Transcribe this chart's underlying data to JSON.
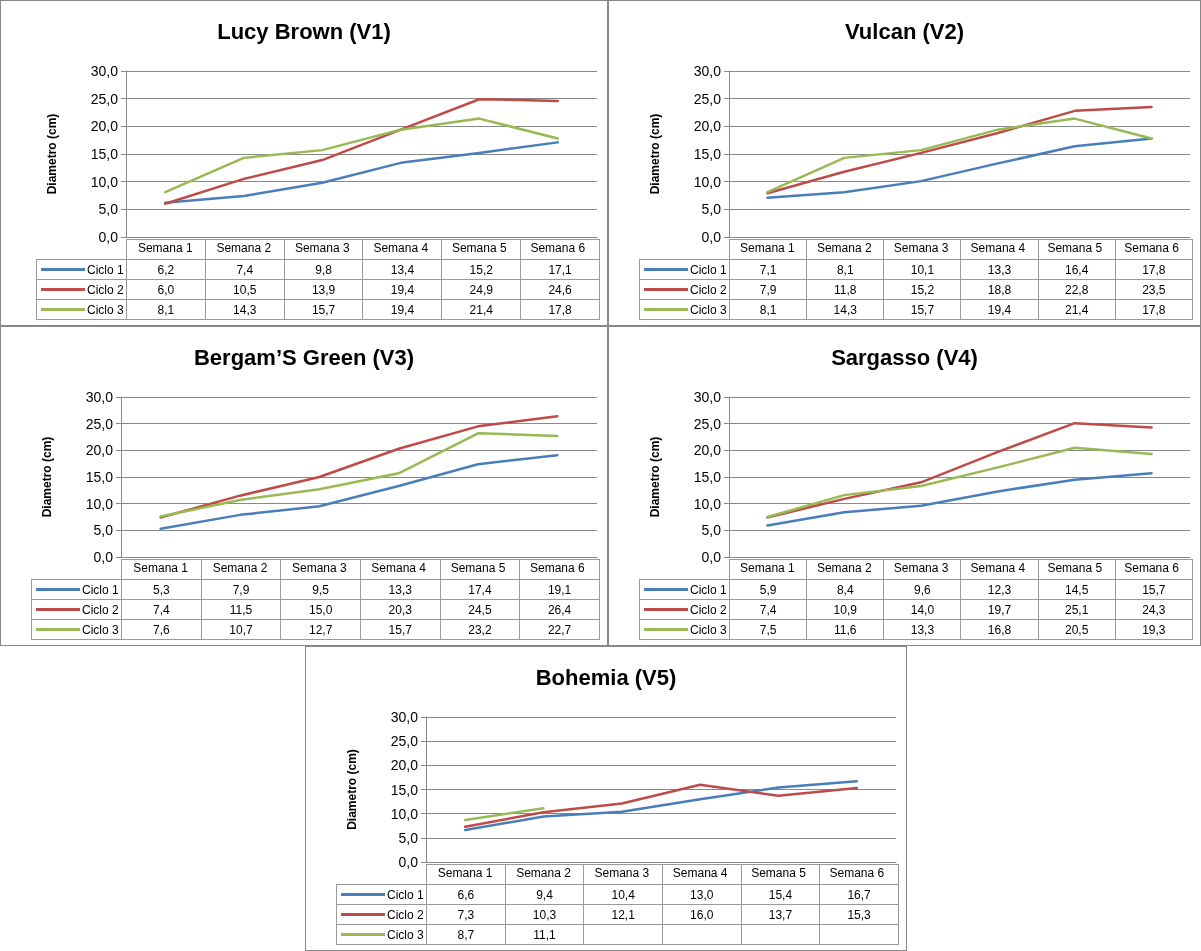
{
  "chart_data": [
    {
      "type": "line",
      "title": "Lucy Brown (V1)",
      "ylabel": "Diametro (cm)",
      "categories": [
        "Semana 1",
        "Semana 2",
        "Semana 3",
        "Semana 4",
        "Semana 5",
        "Semana 6"
      ],
      "series": [
        {
          "name": "Ciclo 1",
          "color": "#4a7ebb",
          "values": [
            6.2,
            7.4,
            9.8,
            13.4,
            15.2,
            17.1
          ],
          "value_labels": [
            "6,2",
            "7,4",
            "9,8",
            "13,4",
            "15,2",
            "17,1"
          ]
        },
        {
          "name": "Ciclo 2",
          "color": "#be4b48",
          "values": [
            6.0,
            10.5,
            13.9,
            19.4,
            24.9,
            24.6
          ],
          "value_labels": [
            "6,0",
            "10,5",
            "13,9",
            "19,4",
            "24,9",
            "24,6"
          ]
        },
        {
          "name": "Ciclo 3",
          "color": "#98b954",
          "values": [
            8.1,
            14.3,
            15.7,
            19.4,
            21.4,
            17.8
          ],
          "value_labels": [
            "8,1",
            "14,3",
            "15,7",
            "19,4",
            "21,4",
            "17,8"
          ]
        }
      ],
      "ylim": [
        0,
        30
      ],
      "yticks": [
        {
          "value": 0,
          "label": "0,0"
        },
        {
          "value": 5,
          "label": "5,0"
        },
        {
          "value": 10,
          "label": "10,0"
        },
        {
          "value": 15,
          "label": "15,0"
        },
        {
          "value": 20,
          "label": "20,0"
        },
        {
          "value": 25,
          "label": "25,0"
        },
        {
          "value": 30,
          "label": "30,0"
        }
      ],
      "grid": "y",
      "legend": "bottom",
      "marker": "none"
    },
    {
      "type": "line",
      "title": "Vulcan (V2)",
      "ylabel": "Diametro (cm)",
      "categories": [
        "Semana 1",
        "Semana 2",
        "Semana 3",
        "Semana 4",
        "Semana 5",
        "Semana 6"
      ],
      "series": [
        {
          "name": "Ciclo 1",
          "color": "#4a7ebb",
          "values": [
            7.1,
            8.1,
            10.1,
            13.3,
            16.4,
            17.8
          ],
          "value_labels": [
            "7,1",
            "8,1",
            "10,1",
            "13,3",
            "16,4",
            "17,8"
          ]
        },
        {
          "name": "Ciclo 2",
          "color": "#be4b48",
          "values": [
            7.9,
            11.8,
            15.2,
            18.8,
            22.8,
            23.5
          ],
          "value_labels": [
            "7,9",
            "11,8",
            "15,2",
            "18,8",
            "22,8",
            "23,5"
          ]
        },
        {
          "name": "Ciclo 3",
          "color": "#98b954",
          "values": [
            8.1,
            14.3,
            15.7,
            19.4,
            21.4,
            17.8
          ],
          "value_labels": [
            "8,1",
            "14,3",
            "15,7",
            "19,4",
            "21,4",
            "17,8"
          ]
        }
      ],
      "ylim": [
        0,
        30
      ],
      "yticks": [
        {
          "value": 0,
          "label": "0,0"
        },
        {
          "value": 5,
          "label": "5,0"
        },
        {
          "value": 10,
          "label": "10,0"
        },
        {
          "value": 15,
          "label": "15,0"
        },
        {
          "value": 20,
          "label": "20,0"
        },
        {
          "value": 25,
          "label": "25,0"
        },
        {
          "value": 30,
          "label": "30,0"
        }
      ],
      "grid": "y",
      "legend": "bottom",
      "marker": "none"
    },
    {
      "type": "line",
      "title": "Bergam’S Green (V3)",
      "ylabel": "Diametro (cm)",
      "categories": [
        "Semana 1",
        "Semana 2",
        "Semana 3",
        "Semana 4",
        "Semana 5",
        "Semana 6"
      ],
      "series": [
        {
          "name": "Ciclo 1",
          "color": "#4a7ebb",
          "values": [
            5.3,
            7.9,
            9.5,
            13.3,
            17.4,
            19.1
          ],
          "value_labels": [
            "5,3",
            "7,9",
            "9,5",
            "13,3",
            "17,4",
            "19,1"
          ]
        },
        {
          "name": "Ciclo 2",
          "color": "#be4b48",
          "values": [
            7.4,
            11.5,
            15.0,
            20.3,
            24.5,
            26.4
          ],
          "value_labels": [
            "7,4",
            "11,5",
            "15,0",
            "20,3",
            "24,5",
            "26,4"
          ]
        },
        {
          "name": "Ciclo 3",
          "color": "#98b954",
          "values": [
            7.6,
            10.7,
            12.7,
            15.7,
            23.2,
            22.7
          ],
          "value_labels": [
            "7,6",
            "10,7",
            "12,7",
            "15,7",
            "23,2",
            "22,7"
          ]
        }
      ],
      "ylim": [
        0,
        30
      ],
      "yticks": [
        {
          "value": 0,
          "label": "0,0"
        },
        {
          "value": 5,
          "label": "5,0"
        },
        {
          "value": 10,
          "label": "10,0"
        },
        {
          "value": 15,
          "label": "15,0"
        },
        {
          "value": 20,
          "label": "20,0"
        },
        {
          "value": 25,
          "label": "25,0"
        },
        {
          "value": 30,
          "label": "30,0"
        }
      ],
      "grid": "y",
      "legend": "bottom",
      "marker": "none"
    },
    {
      "type": "line",
      "title": "Sargasso (V4)",
      "ylabel": "Diametro (cm)",
      "categories": [
        "Semana 1",
        "Semana 2",
        "Semana 3",
        "Semana 4",
        "Semana 5",
        "Semana 6"
      ],
      "series": [
        {
          "name": "Ciclo 1",
          "color": "#4a7ebb",
          "values": [
            5.9,
            8.4,
            9.6,
            12.3,
            14.5,
            15.7
          ],
          "value_labels": [
            "5,9",
            "8,4",
            "9,6",
            "12,3",
            "14,5",
            "15,7"
          ]
        },
        {
          "name": "Ciclo 2",
          "color": "#be4b48",
          "values": [
            7.4,
            10.9,
            14.0,
            19.7,
            25.1,
            24.3
          ],
          "value_labels": [
            "7,4",
            "10,9",
            "14,0",
            "19,7",
            "25,1",
            "24,3"
          ]
        },
        {
          "name": "Ciclo 3",
          "color": "#98b954",
          "values": [
            7.5,
            11.6,
            13.3,
            16.8,
            20.5,
            19.3
          ],
          "value_labels": [
            "7,5",
            "11,6",
            "13,3",
            "16,8",
            "20,5",
            "19,3"
          ]
        }
      ],
      "ylim": [
        0,
        30
      ],
      "yticks": [
        {
          "value": 0,
          "label": "0,0"
        },
        {
          "value": 5,
          "label": "5,0"
        },
        {
          "value": 10,
          "label": "10,0"
        },
        {
          "value": 15,
          "label": "15,0"
        },
        {
          "value": 20,
          "label": "20,0"
        },
        {
          "value": 25,
          "label": "25,0"
        },
        {
          "value": 30,
          "label": "30,0"
        }
      ],
      "grid": "y",
      "legend": "bottom",
      "marker": "none"
    },
    {
      "type": "line",
      "title": "Bohemia (V5)",
      "ylabel": "Diametro (cm)",
      "categories": [
        "Semana 1",
        "Semana 2",
        "Semana 3",
        "Semana 4",
        "Semana 5",
        "Semana 6"
      ],
      "series": [
        {
          "name": "Ciclo 1",
          "color": "#4a7ebb",
          "values": [
            6.6,
            9.4,
            10.4,
            13.0,
            15.4,
            16.7
          ],
          "value_labels": [
            "6,6",
            "9,4",
            "10,4",
            "13,0",
            "15,4",
            "16,7"
          ]
        },
        {
          "name": "Ciclo 2",
          "color": "#be4b48",
          "values": [
            7.3,
            10.3,
            12.1,
            16.0,
            13.7,
            15.3
          ],
          "value_labels": [
            "7,3",
            "10,3",
            "12,1",
            "16,0",
            "13,7",
            "15,3"
          ]
        },
        {
          "name": "Ciclo 3",
          "color": "#98b954",
          "values": [
            8.7,
            11.1,
            null,
            null,
            null,
            null
          ],
          "value_labels": [
            "8,7",
            "11,1",
            null,
            null,
            null,
            null
          ]
        }
      ],
      "ylim": [
        0,
        30
      ],
      "yticks": [
        {
          "value": 0,
          "label": "0,0"
        },
        {
          "value": 5,
          "label": "5,0"
        },
        {
          "value": 10,
          "label": "10,0"
        },
        {
          "value": 15,
          "label": "15,0"
        },
        {
          "value": 20,
          "label": "20,0"
        },
        {
          "value": 25,
          "label": "25,0"
        },
        {
          "value": 30,
          "label": "30,0"
        }
      ],
      "grid": "y",
      "legend": "bottom",
      "marker": "none"
    }
  ]
}
